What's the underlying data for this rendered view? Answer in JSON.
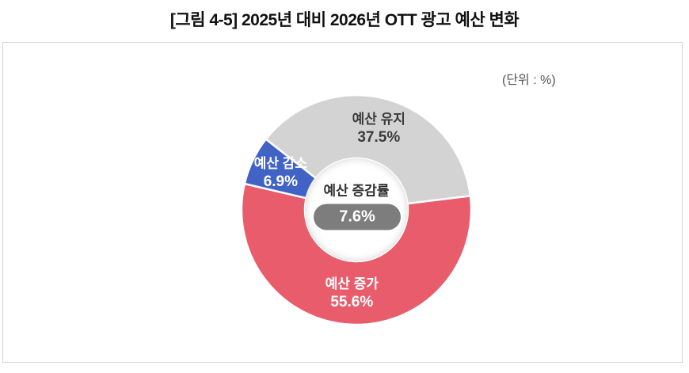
{
  "chart_data": {
    "type": "donut",
    "title": "[그림 4-5] 2025년 대비 2026년 OTT 광고 예산 변화",
    "unit_label": "(단위 : %)",
    "center_label": "예산 증감률",
    "center_value": "7.6%",
    "start_angle_deg": -52,
    "legend_position": "labels-on-slices",
    "segments": [
      {
        "label": "예산 유지",
        "value": 37.5,
        "color": "#d3d3d3",
        "text_color": "#3b3b3b"
      },
      {
        "label": "예산 증가",
        "value": 55.6,
        "color": "#e85c6b",
        "text_color": "#ffffff"
      },
      {
        "label": "예산 감소",
        "value": 6.9,
        "color": "#4163c5",
        "text_color": "#ffffff"
      }
    ],
    "colors": {
      "pill_bg": "#7d7d7d",
      "pill_text": "#ffffff",
      "separator": "#ffffff",
      "frame_border": "#d5d5d5"
    }
  }
}
